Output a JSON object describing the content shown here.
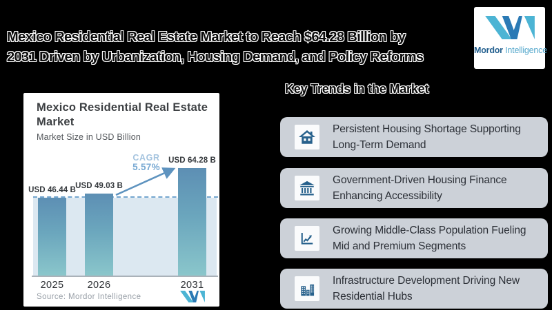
{
  "header": {
    "title_line1": "Mexico Residential Real Estate Market to Reach $64.28 Billion by",
    "title_line2": "2031 Driven by Urbanization, Housing Demand, and Policy Reforms"
  },
  "logo": {
    "word1": "Mordor",
    "word2": "Intelligence",
    "teal": "#4cb4d4",
    "dark_blue": "#2b7ab5"
  },
  "chart_card": {
    "title_line1": "Mexico Residential Real Estate",
    "title_line2": "Market",
    "subtitle": "Market Size in USD Billion",
    "cagr_label": "CAGR",
    "cagr_value": "5.57%",
    "source": "Source: Mordor Intelligence"
  },
  "chart_data": {
    "type": "bar",
    "title": "Mexico Residential Real Estate Market",
    "subtitle": "Market Size in USD Billion",
    "categories": [
      "2025",
      "2026",
      "2031"
    ],
    "values": [
      46.44,
      49.03,
      64.28
    ],
    "value_labels": [
      "USD 46.44 B",
      "USD 49.03 B",
      "USD 64.28 B"
    ],
    "cagr_percent": 5.57,
    "dashed_line_value": 46.44,
    "ylim": [
      0,
      70
    ],
    "grid": false,
    "legend": "none",
    "plot_bg": "#dce8f1",
    "bar_gradient_top": "#5d8fb4",
    "bar_gradient_bottom": "#8ac6cb",
    "dashed_line_color": "#74a6cf",
    "arrow_color": "#5e93bf"
  },
  "trends": {
    "heading": "Key Trends in the Market",
    "item_bg": "#ccd1d8",
    "icon_color": "#27618c",
    "items": [
      {
        "icon": "house-icon",
        "line1": "Persistent Housing Shortage Supporting",
        "line2": "Long-Term Demand"
      },
      {
        "icon": "bank-icon",
        "line1": "Government-Driven Housing Finance",
        "line2": "Enhancing Accessibility"
      },
      {
        "icon": "growth-chart-icon",
        "line1": "Growing Middle-Class Population Fueling",
        "line2": "Mid and Premium Segments"
      },
      {
        "icon": "buildings-icon",
        "line1": "Infrastructure Development Driving New",
        "line2": "Residential Hubs"
      }
    ]
  }
}
